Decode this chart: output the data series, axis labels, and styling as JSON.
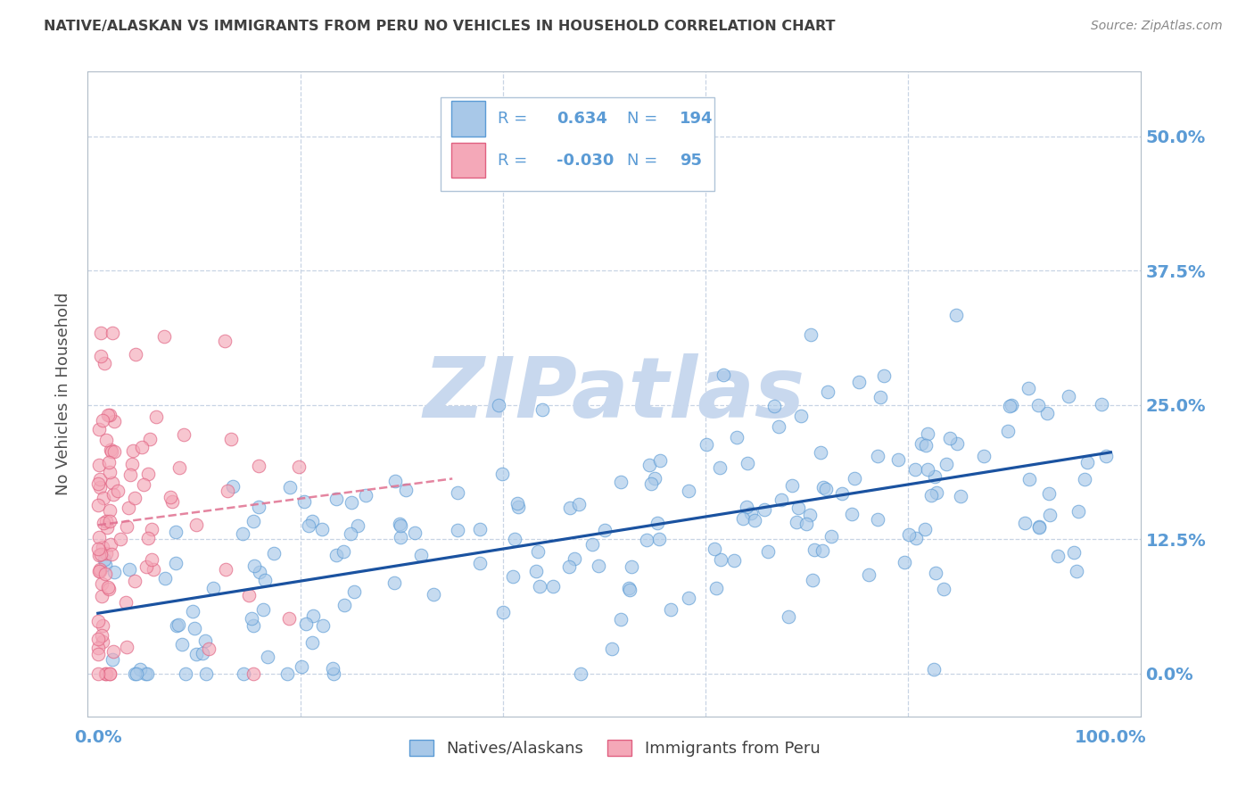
{
  "title": "NATIVE/ALASKAN VS IMMIGRANTS FROM PERU NO VEHICLES IN HOUSEHOLD CORRELATION CHART",
  "source": "Source: ZipAtlas.com",
  "ylabel": "No Vehicles in Household",
  "ytick_values": [
    0.0,
    0.125,
    0.25,
    0.375,
    0.5
  ],
  "xtick_values": [
    0.0,
    0.2,
    0.4,
    0.6,
    0.8,
    1.0
  ],
  "xlim": [
    -0.01,
    1.03
  ],
  "ylim": [
    -0.04,
    0.56
  ],
  "blue_R": 0.634,
  "blue_N": 194,
  "pink_R": -0.03,
  "pink_N": 95,
  "blue_color": "#a8c8e8",
  "blue_edge": "#5b9bd5",
  "pink_color": "#f4a8b8",
  "pink_edge": "#e06080",
  "blue_line_color": "#1a52a0",
  "pink_line_color": "#e07090",
  "background_color": "#ffffff",
  "grid_color": "#c8d4e4",
  "title_color": "#404040",
  "axis_label_color": "#5b9bd5",
  "watermark": "ZIPatlas",
  "watermark_color": "#c8d8ee",
  "legend_text_color": "#5b9bd5",
  "source_color": "#888888"
}
